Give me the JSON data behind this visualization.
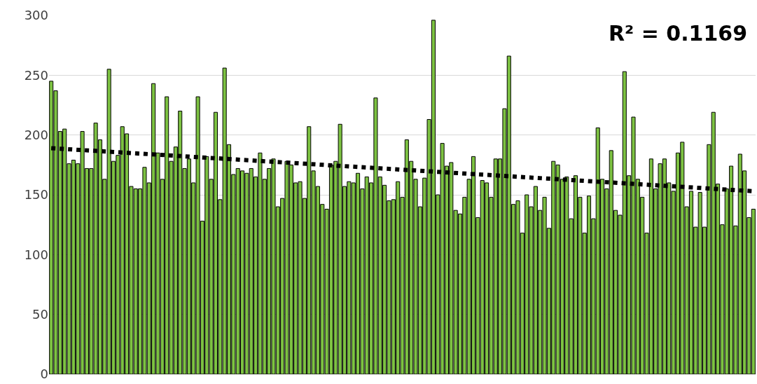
{
  "chart_data": {
    "type": "bar",
    "categories": [
      null,
      null,
      null,
      null,
      null,
      null,
      null,
      null,
      null,
      null,
      null,
      null,
      null,
      null,
      null,
      null,
      null,
      null,
      null,
      null,
      null,
      null,
      null,
      null,
      null,
      null,
      null,
      null,
      null,
      null,
      null,
      null,
      null,
      null,
      null,
      null,
      null,
      null,
      null,
      null,
      null,
      null,
      null,
      null,
      null,
      null,
      null,
      null,
      null,
      null,
      null,
      null,
      null,
      null,
      null,
      null,
      null,
      null,
      null,
      null,
      null,
      null,
      null,
      null,
      null,
      null,
      null,
      null,
      null,
      null,
      null,
      null,
      null,
      null,
      null,
      null,
      null,
      null,
      null,
      null,
      null,
      null,
      null,
      null,
      null,
      null,
      null,
      null,
      null,
      null,
      null,
      null,
      null,
      null,
      null,
      null,
      null,
      null,
      null,
      null,
      null,
      null,
      null,
      null,
      null,
      null,
      null,
      null,
      null,
      null,
      null,
      null,
      null,
      null,
      null,
      null,
      null,
      null,
      null,
      null,
      null,
      null,
      null,
      null,
      null,
      null,
      null,
      null,
      null,
      null,
      null,
      null,
      null,
      null,
      null,
      null,
      null,
      null,
      null,
      null,
      null,
      null,
      null,
      null,
      null,
      null,
      null,
      null,
      null,
      null,
      null,
      null,
      null,
      null,
      null,
      null,
      null,
      null,
      null
    ],
    "series": [
      {
        "color": "#7dc242",
        "values": [
          245,
          237,
          203,
          205,
          176,
          179,
          176,
          203,
          172,
          172,
          210,
          196,
          163,
          255,
          178,
          183,
          207,
          201,
          157,
          155,
          155,
          173,
          160,
          243,
          185,
          163,
          232,
          178,
          190,
          220,
          172,
          180,
          160,
          232,
          128,
          182,
          163,
          219,
          146,
          256,
          192,
          167,
          172,
          170,
          168,
          172,
          165,
          185,
          163,
          172,
          180,
          140,
          147,
          178,
          175,
          160,
          161,
          147,
          207,
          170,
          157,
          142,
          138,
          175,
          178,
          209,
          157,
          161,
          160,
          168,
          155,
          165,
          160,
          231,
          165,
          158,
          145,
          146,
          161,
          148,
          196,
          178,
          163,
          140,
          164,
          213,
          296,
          150,
          193,
          174,
          177,
          137,
          134,
          148,
          163,
          182,
          131,
          162,
          160,
          148,
          180,
          180,
          222,
          266,
          142,
          145,
          118,
          150,
          140,
          157,
          137,
          148,
          122,
          178,
          175,
          163,
          165,
          130,
          166,
          148,
          118,
          149,
          130,
          206,
          163,
          155,
          187,
          137,
          133,
          253,
          166,
          215,
          163,
          148,
          118,
          180,
          155,
          176,
          180,
          160,
          153,
          185,
          194,
          140,
          153,
          123,
          152,
          123,
          192,
          219,
          159,
          125,
          155,
          174,
          124,
          184,
          170,
          131,
          138
        ]
      },
      {
        "type": "line",
        "color": "#000000",
        "line_style": "dotted",
        "values": [
          189,
          null,
          null,
          null,
          null,
          null,
          null,
          null,
          null,
          null,
          null,
          null,
          null,
          null,
          null,
          null,
          null,
          null,
          null,
          null,
          null,
          null,
          null,
          null,
          null,
          null,
          null,
          null,
          null,
          null,
          null,
          null,
          null,
          null,
          null,
          null,
          null,
          null,
          null,
          null,
          null,
          null,
          null,
          null,
          null,
          null,
          null,
          null,
          null,
          null,
          null,
          null,
          null,
          null,
          null,
          null,
          null,
          null,
          null,
          null,
          null,
          null,
          null,
          null,
          null,
          null,
          null,
          null,
          null,
          null,
          null,
          null,
          null,
          null,
          null,
          null,
          null,
          null,
          null,
          null,
          null,
          null,
          null,
          null,
          null,
          null,
          null,
          null,
          null,
          null,
          null,
          null,
          null,
          null,
          null,
          null,
          null,
          null,
          null,
          null,
          null,
          null,
          null,
          null,
          null,
          null,
          null,
          null,
          null,
          null,
          null,
          null,
          null,
          null,
          null,
          null,
          null,
          null,
          null,
          null,
          null,
          null,
          null,
          null,
          null,
          null,
          null,
          null,
          null,
          null,
          null,
          null,
          null,
          null,
          null,
          null,
          null,
          null,
          null,
          null,
          null,
          null,
          null,
          null,
          null,
          null,
          null,
          null,
          null,
          null,
          null,
          null,
          null,
          null,
          null,
          null,
          null,
          null,
          153
        ]
      }
    ],
    "ylim": [
      0,
      300
    ],
    "yticks": [
      0,
      50,
      100,
      150,
      200,
      250,
      300
    ],
    "grid": "y",
    "tick_labels": "y",
    "annotations": [
      "R² = 0.1169"
    ]
  }
}
